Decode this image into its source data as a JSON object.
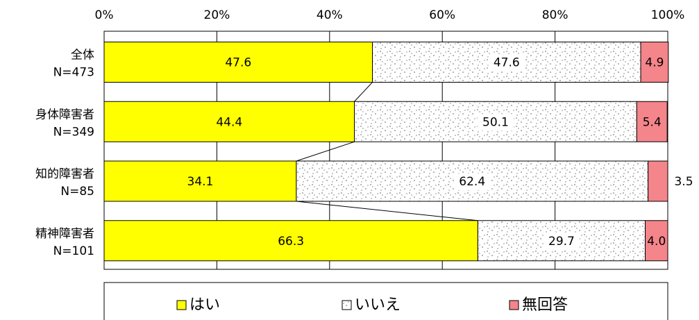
{
  "chart_data": {
    "type": "bar",
    "stacked": true,
    "percent": true,
    "orientation": "horizontal",
    "xlim": [
      0,
      100
    ],
    "ticks": [
      "0%",
      "20%",
      "40%",
      "60%",
      "80%",
      "100%"
    ],
    "categories": [
      {
        "name": "全体",
        "n": "N=473"
      },
      {
        "name": "身体障害者",
        "n": "N=349"
      },
      {
        "name": "知的障害者",
        "n": "N=85"
      },
      {
        "name": "精神障害者",
        "n": "N=101"
      }
    ],
    "series": [
      {
        "name": "はい",
        "color": "#ffff00",
        "values": [
          47.6,
          44.4,
          34.1,
          66.3
        ]
      },
      {
        "name": "いいえ",
        "color": "#ffffff",
        "pattern": "dotted-gray",
        "values": [
          47.6,
          50.1,
          62.4,
          29.7
        ]
      },
      {
        "name": "無回答",
        "color": "#f4858a",
        "values": [
          4.9,
          5.4,
          3.5,
          4.0
        ]
      }
    ],
    "value_labels": [
      [
        "47.6",
        "47.6",
        "4.9"
      ],
      [
        "44.4",
        "50.1",
        "5.4"
      ],
      [
        "34.1",
        "62.4",
        "3.5"
      ],
      [
        "66.3",
        "29.7",
        "4.0"
      ]
    ],
    "grid": true,
    "legend_position": "bottom"
  }
}
